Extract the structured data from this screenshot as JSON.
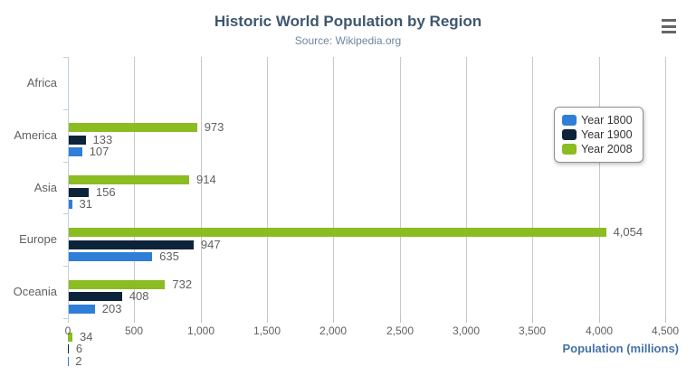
{
  "header": {
    "title": "Historic World Population by Region",
    "subtitle": "Source: Wikipedia.org"
  },
  "context_menu": {
    "icon": "hamburger-menu-icon",
    "color": "#666666"
  },
  "chart_data": {
    "type": "bar",
    "orientation": "horizontal",
    "title": "Historic World Population by Region",
    "subtitle": "Source: Wikipedia.org",
    "categories": [
      "Africa",
      "America",
      "Asia",
      "Europe",
      "Oceania"
    ],
    "series": [
      {
        "name": "Year 1800",
        "color": "#2f7ed8",
        "values": [
          107,
          31,
          635,
          203,
          2
        ]
      },
      {
        "name": "Year 1900",
        "color": "#0d233a",
        "values": [
          133,
          156,
          947,
          408,
          6
        ]
      },
      {
        "name": "Year 2008",
        "color": "#8bbc21",
        "values": [
          973,
          914,
          4054,
          732,
          34
        ]
      }
    ],
    "series_order_top_to_bottom": [
      "Year 2008",
      "Year 1900",
      "Year 1800"
    ],
    "xlabel": "Population (millions)",
    "ylabel": "",
    "xlim": [
      0,
      4500
    ],
    "x_ticks": [
      0,
      500,
      1000,
      1500,
      2000,
      2500,
      3000,
      3500,
      4000,
      4500
    ],
    "x_tick_labels": [
      "0",
      "500",
      "1,000",
      "1,500",
      "2,000",
      "2,500",
      "3,000",
      "3,500",
      "4,000",
      "4,500"
    ],
    "data_labels_visible": true,
    "grid": true,
    "legend_position": "right-middle"
  },
  "legend": {
    "items": [
      {
        "label": "Year 1800",
        "color": "#2f7ed8"
      },
      {
        "label": "Year 1900",
        "color": "#0d233a"
      },
      {
        "label": "Year 2008",
        "color": "#8bbc21"
      }
    ]
  },
  "style_colors": {
    "title": "#3E576F",
    "subtitle": "#6D869F",
    "axis_title": "#4572A7",
    "labels": "#606060",
    "gridline": "#C8C8C8",
    "axis_line": "#C0D0E0"
  }
}
